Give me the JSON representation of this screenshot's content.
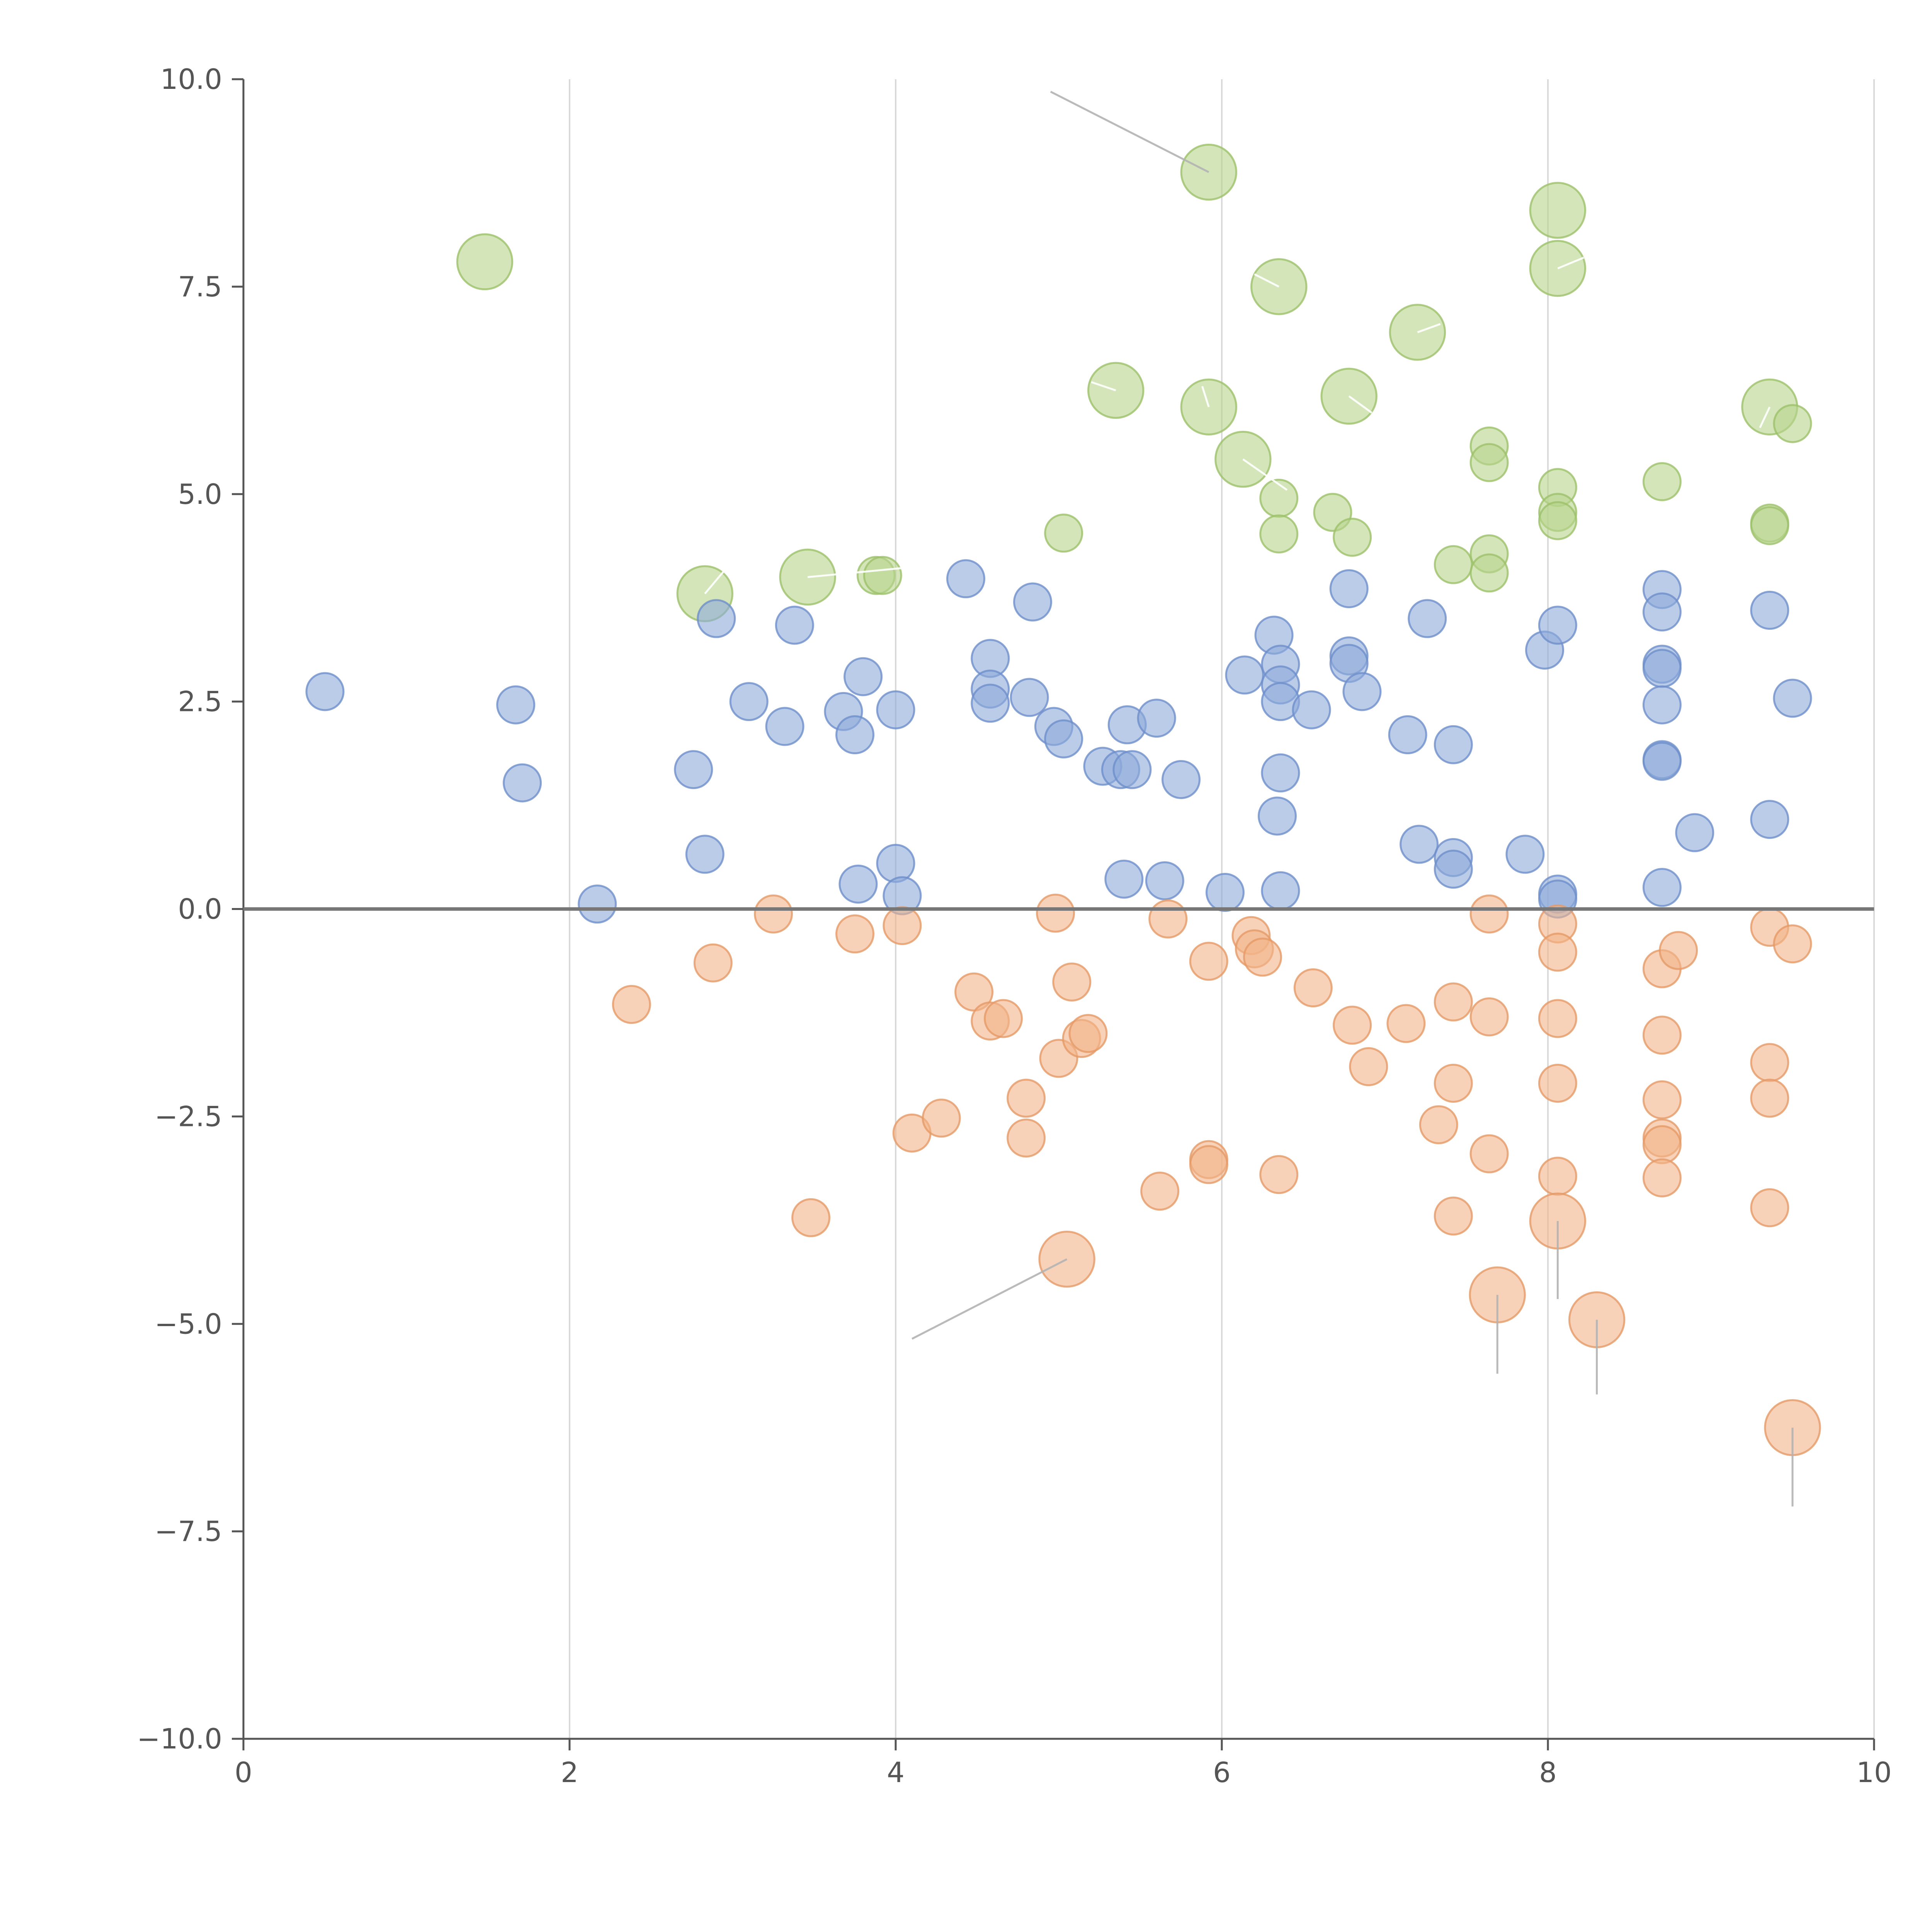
{
  "chart_data": {
    "type": "scatter",
    "title": "",
    "xlabel": "",
    "ylabel": "",
    "xlim": [
      0,
      10
    ],
    "ylim": [
      -10,
      10
    ],
    "x_ticks": [
      0,
      2,
      4,
      6,
      8,
      10
    ],
    "y_ticks": [
      10,
      7.5,
      5,
      2.5,
      0,
      -2.5,
      -5,
      -7.5,
      -10
    ],
    "x_tick_labels": [
      "0",
      "2",
      "4",
      "6",
      "8",
      "10"
    ],
    "y_tick_labels": [
      "10.0",
      "7.5",
      "5.0",
      "2.5",
      "0.0",
      "−2.5",
      "−5.0",
      "−7.5",
      "−10.0"
    ],
    "grid": "vertical",
    "reference_line_y": 0,
    "size_scale": "bubble area proportional to magnitude",
    "series": [
      {
        "name": "green",
        "color": "#b7d48c",
        "edge": "#9cc06a",
        "points": [
          [
            1.48,
            7.8,
            2.2
          ],
          [
            2.83,
            3.8,
            2.2
          ],
          [
            3.46,
            4.0,
            2.2
          ],
          [
            3.88,
            4.02,
            1.0
          ],
          [
            3.92,
            4.02,
            1.0
          ],
          [
            5.03,
            4.53,
            1.0
          ],
          [
            5.35,
            6.25,
            2.2
          ],
          [
            5.92,
            8.88,
            2.2
          ],
          [
            5.92,
            6.05,
            2.2
          ],
          [
            6.13,
            5.42,
            2.2
          ],
          [
            6.35,
            7.5,
            2.2
          ],
          [
            6.35,
            4.95,
            1.0
          ],
          [
            6.35,
            4.52,
            1.0
          ],
          [
            6.68,
            4.78,
            1.0
          ],
          [
            6.78,
            6.18,
            2.2
          ],
          [
            6.8,
            4.48,
            1.0
          ],
          [
            7.2,
            6.95,
            2.2
          ],
          [
            7.42,
            4.15,
            1.0
          ],
          [
            7.64,
            5.58,
            1.0
          ],
          [
            7.64,
            5.38,
            1.0
          ],
          [
            7.64,
            4.28,
            1.0
          ],
          [
            7.64,
            4.05,
            1.0
          ],
          [
            8.06,
            8.42,
            2.2
          ],
          [
            8.06,
            7.72,
            2.2
          ],
          [
            8.06,
            5.08,
            1.0
          ],
          [
            8.06,
            4.78,
            1.0
          ],
          [
            8.06,
            4.68,
            1.0
          ],
          [
            8.7,
            5.15,
            1.0
          ],
          [
            9.36,
            6.05,
            2.2
          ],
          [
            9.36,
            4.65,
            1.0
          ],
          [
            9.36,
            4.62,
            1.0
          ],
          [
            9.5,
            5.85,
            1.0
          ]
        ]
      },
      {
        "name": "blue",
        "color": "#8eaadb",
        "edge": "#6e8fca",
        "points": [
          [
            0.5,
            2.62,
            1.0
          ],
          [
            1.67,
            2.46,
            1.0
          ],
          [
            1.71,
            1.52,
            1.0
          ],
          [
            2.17,
            0.06,
            1.0
          ],
          [
            2.76,
            1.68,
            1.0
          ],
          [
            2.83,
            0.66,
            1.0
          ],
          [
            2.9,
            3.5,
            1.0
          ],
          [
            3.1,
            2.5,
            1.0
          ],
          [
            3.32,
            2.2,
            1.0
          ],
          [
            3.38,
            3.42,
            1.0
          ],
          [
            3.68,
            2.38,
            1.0
          ],
          [
            3.75,
            2.1,
            1.0
          ],
          [
            3.77,
            0.3,
            1.0
          ],
          [
            3.8,
            2.8,
            1.0
          ],
          [
            4.0,
            2.4,
            1.0
          ],
          [
            4.0,
            0.55,
            1.0
          ],
          [
            4.04,
            0.16,
            1.0
          ],
          [
            4.43,
            3.98,
            1.0
          ],
          [
            4.58,
            3.02,
            1.0
          ],
          [
            4.58,
            2.65,
            1.0
          ],
          [
            4.58,
            2.48,
            1.0
          ],
          [
            4.84,
            3.7,
            1.0
          ],
          [
            4.82,
            2.55,
            1.0
          ],
          [
            4.97,
            2.2,
            1.0
          ],
          [
            5.03,
            2.05,
            1.0
          ],
          [
            5.27,
            1.72,
            1.0
          ],
          [
            5.38,
            1.68,
            1.0
          ],
          [
            5.45,
            1.68,
            1.0
          ],
          [
            5.4,
            0.36,
            1.0
          ],
          [
            5.42,
            2.22,
            1.0
          ],
          [
            5.6,
            2.3,
            1.0
          ],
          [
            5.65,
            0.34,
            1.0
          ],
          [
            5.75,
            1.56,
            1.0
          ],
          [
            6.02,
            0.2,
            1.0
          ],
          [
            6.14,
            2.82,
            1.0
          ],
          [
            6.32,
            3.3,
            1.0
          ],
          [
            6.36,
            2.95,
            1.0
          ],
          [
            6.36,
            2.7,
            1.0
          ],
          [
            6.36,
            2.5,
            1.0
          ],
          [
            6.36,
            1.64,
            1.0
          ],
          [
            6.34,
            1.12,
            1.0
          ],
          [
            6.36,
            0.22,
            1.0
          ],
          [
            6.55,
            2.4,
            1.0
          ],
          [
            6.78,
            3.86,
            1.0
          ],
          [
            6.78,
            3.05,
            1.0
          ],
          [
            6.78,
            2.96,
            1.0
          ],
          [
            6.86,
            2.62,
            1.0
          ],
          [
            7.14,
            2.1,
            1.0
          ],
          [
            7.26,
            3.5,
            1.0
          ],
          [
            7.21,
            0.78,
            1.0
          ],
          [
            7.42,
            1.98,
            1.0
          ],
          [
            7.42,
            0.62,
            1.0
          ],
          [
            7.42,
            0.48,
            1.0
          ],
          [
            7.86,
            0.66,
            1.0
          ],
          [
            7.98,
            3.12,
            1.0
          ],
          [
            8.06,
            3.42,
            1.0
          ],
          [
            8.06,
            0.18,
            1.0
          ],
          [
            8.06,
            0.12,
            1.0
          ],
          [
            8.7,
            3.85,
            1.0
          ],
          [
            8.7,
            3.58,
            1.0
          ],
          [
            8.7,
            2.95,
            1.0
          ],
          [
            8.7,
            2.9,
            1.0
          ],
          [
            8.7,
            2.46,
            1.0
          ],
          [
            8.7,
            1.8,
            1.0
          ],
          [
            8.7,
            1.78,
            1.0
          ],
          [
            8.7,
            0.26,
            1.0
          ],
          [
            8.9,
            0.92,
            1.0
          ],
          [
            9.36,
            3.6,
            1.0
          ],
          [
            9.36,
            1.08,
            1.0
          ],
          [
            9.5,
            2.54,
            1.0
          ]
        ]
      },
      {
        "name": "orange",
        "color": "#f2b489",
        "edge": "#e59a66",
        "points": [
          [
            2.38,
            -1.15,
            1.0
          ],
          [
            2.88,
            -0.65,
            1.0
          ],
          [
            3.25,
            -0.06,
            1.0
          ],
          [
            3.48,
            -3.72,
            1.0
          ],
          [
            3.75,
            -0.3,
            1.0
          ],
          [
            4.04,
            -0.2,
            1.0
          ],
          [
            4.1,
            -2.7,
            1.0
          ],
          [
            4.28,
            -2.52,
            1.0
          ],
          [
            4.48,
            -1.0,
            1.0
          ],
          [
            4.58,
            -1.35,
            1.0
          ],
          [
            4.66,
            -1.32,
            1.0
          ],
          [
            4.8,
            -2.28,
            1.0
          ],
          [
            4.8,
            -2.76,
            1.0
          ],
          [
            4.98,
            -0.05,
            1.0
          ],
          [
            5.0,
            -1.8,
            1.0
          ],
          [
            5.08,
            -0.88,
            1.0
          ],
          [
            5.14,
            -1.56,
            1.0
          ],
          [
            5.18,
            -1.5,
            1.0
          ],
          [
            5.05,
            -4.22,
            2.2
          ],
          [
            5.62,
            -3.4,
            1.0
          ],
          [
            5.67,
            -0.12,
            1.0
          ],
          [
            5.92,
            -0.63,
            1.0
          ],
          [
            5.92,
            -3.02,
            1.0
          ],
          [
            5.92,
            -3.08,
            1.0
          ],
          [
            6.18,
            -0.32,
            1.0
          ],
          [
            6.2,
            -0.48,
            1.0
          ],
          [
            6.25,
            -0.58,
            1.0
          ],
          [
            6.35,
            -3.2,
            1.0
          ],
          [
            6.56,
            -0.95,
            1.0
          ],
          [
            6.8,
            -1.4,
            1.0
          ],
          [
            6.9,
            -1.9,
            1.0
          ],
          [
            7.13,
            -1.38,
            1.0
          ],
          [
            7.33,
            -2.6,
            1.0
          ],
          [
            7.42,
            -1.12,
            1.0
          ],
          [
            7.42,
            -2.1,
            1.0
          ],
          [
            7.42,
            -3.7,
            1.0
          ],
          [
            7.64,
            -0.06,
            1.0
          ],
          [
            7.64,
            -1.3,
            1.0
          ],
          [
            7.64,
            -2.95,
            1.0
          ],
          [
            7.69,
            -4.65,
            2.2
          ],
          [
            8.06,
            -0.18,
            1.0
          ],
          [
            8.06,
            -0.52,
            1.0
          ],
          [
            8.06,
            -1.32,
            1.0
          ],
          [
            8.06,
            -2.1,
            1.0
          ],
          [
            8.06,
            -3.22,
            1.0
          ],
          [
            8.06,
            -3.76,
            2.2
          ],
          [
            8.3,
            -4.95,
            2.2
          ],
          [
            8.7,
            -0.72,
            1.0
          ],
          [
            8.7,
            -1.52,
            1.0
          ],
          [
            8.7,
            -2.3,
            1.0
          ],
          [
            8.7,
            -2.76,
            1.0
          ],
          [
            8.7,
            -2.84,
            1.0
          ],
          [
            8.7,
            -3.24,
            1.0
          ],
          [
            8.8,
            -0.5,
            1.0
          ],
          [
            9.36,
            -0.22,
            1.0
          ],
          [
            9.36,
            -1.85,
            1.0
          ],
          [
            9.36,
            -2.28,
            1.0
          ],
          [
            9.36,
            -3.6,
            1.0
          ],
          [
            9.5,
            -0.42,
            1.0
          ],
          [
            9.5,
            -6.25,
            2.2
          ]
        ]
      }
    ],
    "annotation_leaders": [
      {
        "from": [
          5.92,
          8.88
        ],
        "to": [
          4.95,
          9.85
        ],
        "color": "#b3b3b3"
      },
      {
        "from": [
          6.35,
          7.5
        ],
        "to": [
          6.2,
          7.65
        ],
        "color": "#ffffff"
      },
      {
        "from": [
          8.06,
          7.72
        ],
        "to": [
          8.22,
          7.85
        ],
        "color": "#ffffff"
      },
      {
        "from": [
          7.2,
          6.95
        ],
        "to": [
          7.34,
          7.05
        ],
        "color": "#ffffff"
      },
      {
        "from": [
          5.35,
          6.25
        ],
        "to": [
          5.2,
          6.35
        ],
        "color": "#ffffff"
      },
      {
        "from": [
          5.92,
          6.05
        ],
        "to": [
          5.88,
          6.3
        ],
        "color": "#ffffff"
      },
      {
        "from": [
          6.78,
          6.18
        ],
        "to": [
          6.92,
          5.98
        ],
        "color": "#ffffff"
      },
      {
        "from": [
          6.13,
          5.42
        ],
        "to": [
          6.4,
          5.05
        ],
        "color": "#ffffff"
      },
      {
        "from": [
          9.36,
          6.05
        ],
        "to": [
          9.3,
          5.8
        ],
        "color": "#ffffff"
      },
      {
        "from": [
          2.83,
          3.8
        ],
        "to": [
          2.95,
          4.08
        ],
        "color": "#ffffff"
      },
      {
        "from": [
          3.46,
          4.0
        ],
        "to": [
          4.1,
          4.12
        ],
        "color": "#ffffff"
      },
      {
        "from": [
          5.05,
          -4.22
        ],
        "to": [
          4.1,
          -5.18
        ],
        "color": "#b3b3b3"
      },
      {
        "from": [
          7.69,
          -4.65
        ],
        "to": [
          7.69,
          -5.6
        ],
        "color": "#b3b3b3"
      },
      {
        "from": [
          8.06,
          -3.76
        ],
        "to": [
          8.06,
          -4.7
        ],
        "color": "#b3b3b3"
      },
      {
        "from": [
          8.3,
          -4.95
        ],
        "to": [
          8.3,
          -5.85
        ],
        "color": "#b3b3b3"
      },
      {
        "from": [
          9.5,
          -6.25
        ],
        "to": [
          9.5,
          -7.2
        ],
        "color": "#b3b3b3"
      }
    ]
  }
}
